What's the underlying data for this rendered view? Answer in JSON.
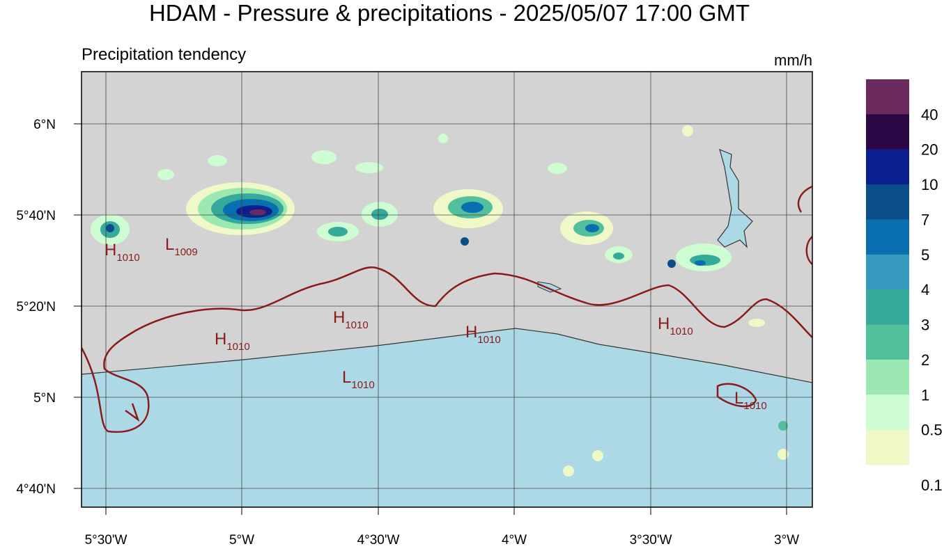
{
  "header": {
    "title": "HDAM - Pressure & precipitations  -  2025/05/07  17:00 GMT",
    "subtitle": "Precipitation tendency",
    "unit": "mm/h"
  },
  "legend": {
    "labels": [
      "40",
      "20",
      "10",
      "7",
      "5",
      "4",
      "3",
      "2",
      "1",
      "0.5",
      "0.1"
    ],
    "colors": [
      "#6b2a5e",
      "#2b0845",
      "#0b1f8e",
      "#0b4f8a",
      "#0a6fae",
      "#3598bd",
      "#35a99a",
      "#53c09d",
      "#9ce8b1",
      "#cefdd1",
      "#eff9c8"
    ]
  },
  "lat_labels": [
    "6°N",
    "5°40'N",
    "5°20'N",
    "5°N",
    "4°40'N"
  ],
  "lon_labels": [
    "5°30'W",
    "5°W",
    "4°30'W",
    "4°W",
    "3°30'W",
    "3°W"
  ],
  "pressure_labels": [
    {
      "letter": "H",
      "value": "1010"
    },
    {
      "letter": "L",
      "value": "1009"
    },
    {
      "letter": "H",
      "value": "1010"
    },
    {
      "letter": "H",
      "value": "1010"
    },
    {
      "letter": "H",
      "value": "1010"
    },
    {
      "letter": "H",
      "value": "1010"
    },
    {
      "letter": "L",
      "value": "1010"
    },
    {
      "letter": "L",
      "value": "1010"
    }
  ]
}
